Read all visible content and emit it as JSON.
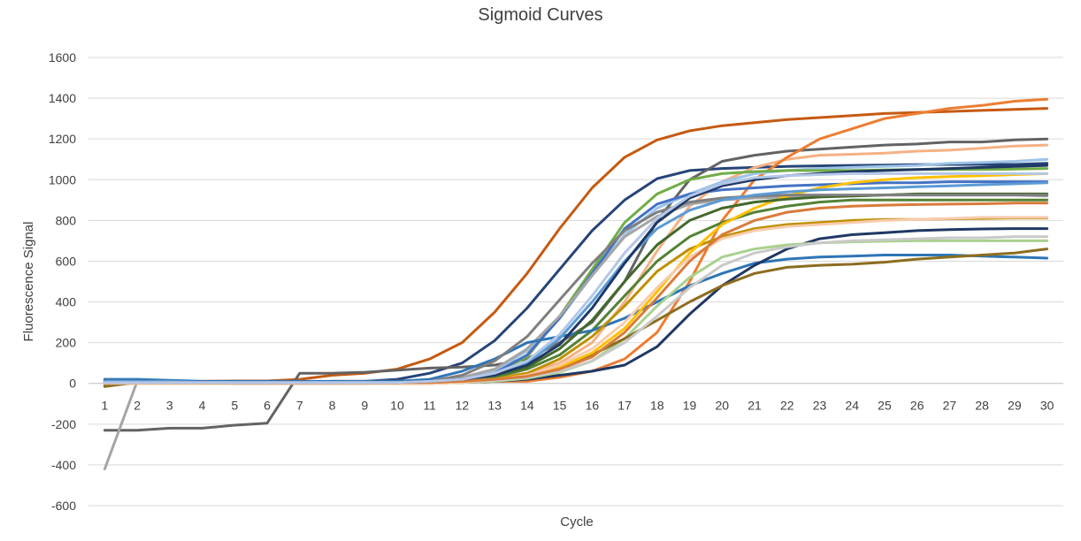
{
  "chart_data": {
    "type": "line",
    "title": "Sigmoid Curves",
    "xlabel": "Cycle",
    "ylabel": "Fluorescence Signal",
    "x": [
      1,
      2,
      3,
      4,
      5,
      6,
      7,
      8,
      9,
      10,
      11,
      12,
      13,
      14,
      15,
      16,
      17,
      18,
      19,
      20,
      21,
      22,
      23,
      24,
      25,
      26,
      27,
      28,
      29,
      30
    ],
    "ylim": [
      -600,
      1600
    ],
    "yticks": [
      -600,
      -400,
      -200,
      0,
      200,
      400,
      600,
      800,
      1000,
      1200,
      1400,
      1600
    ],
    "grid": "horizontal",
    "legend": "none",
    "series": [
      {
        "color": "#c55a11",
        "values": [
          0,
          5,
          8,
          10,
          12,
          12,
          20,
          40,
          50,
          70,
          120,
          200,
          350,
          540,
          760,
          960,
          1110,
          1195,
          1240,
          1265,
          1280,
          1295,
          1305,
          1315,
          1325,
          1330,
          1335,
          1340,
          1345,
          1350
        ]
      },
      {
        "color": "#264478",
        "values": [
          5,
          5,
          5,
          5,
          5,
          5,
          5,
          10,
          10,
          20,
          50,
          100,
          210,
          370,
          560,
          750,
          900,
          1005,
          1045,
          1055,
          1060,
          1065,
          1068,
          1070,
          1072,
          1074,
          1075,
          1075,
          1075,
          1080
        ]
      },
      {
        "color": "#636363",
        "values": [
          -230,
          -230,
          -220,
          -220,
          -205,
          -195,
          50,
          50,
          55,
          65,
          75,
          80,
          90,
          120,
          200,
          300,
          500,
          800,
          1000,
          1090,
          1120,
          1140,
          1150,
          1160,
          1170,
          1175,
          1185,
          1185,
          1195,
          1200
        ]
      },
      {
        "color": "#f4b183",
        "values": [
          10,
          10,
          5,
          5,
          0,
          0,
          10,
          5,
          10,
          10,
          10,
          20,
          30,
          50,
          100,
          200,
          400,
          650,
          870,
          990,
          1060,
          1100,
          1120,
          1125,
          1130,
          1140,
          1145,
          1155,
          1165,
          1170
        ]
      },
      {
        "color": "#ed7d31",
        "values": [
          20,
          15,
          10,
          5,
          5,
          5,
          5,
          5,
          5,
          0,
          0,
          5,
          10,
          10,
          30,
          60,
          120,
          250,
          500,
          800,
          1000,
          1110,
          1200,
          1250,
          1300,
          1325,
          1350,
          1365,
          1385,
          1395
        ]
      },
      {
        "color": "#9dc3e6",
        "values": [
          10,
          10,
          8,
          5,
          5,
          5,
          5,
          5,
          5,
          5,
          10,
          20,
          60,
          160,
          320,
          530,
          730,
          860,
          930,
          990,
          1030,
          1045,
          1055,
          1060,
          1065,
          1070,
          1080,
          1085,
          1090,
          1100
        ]
      },
      {
        "color": "#70ad47",
        "values": [
          10,
          10,
          5,
          5,
          5,
          5,
          5,
          5,
          5,
          5,
          10,
          20,
          50,
          130,
          330,
          560,
          790,
          930,
          1000,
          1030,
          1040,
          1045,
          1045,
          1045,
          1048,
          1050,
          1050,
          1050,
          1052,
          1055
        ]
      },
      {
        "color": "#4472c4",
        "values": [
          15,
          10,
          5,
          5,
          0,
          0,
          0,
          0,
          0,
          5,
          10,
          20,
          50,
          140,
          320,
          540,
          760,
          880,
          930,
          950,
          960,
          970,
          975,
          980,
          985,
          985,
          990,
          990,
          990,
          990
        ]
      },
      {
        "color": "#a5a5a5",
        "values": [
          -420,
          10,
          5,
          5,
          0,
          0,
          0,
          5,
          5,
          5,
          10,
          30,
          70,
          170,
          330,
          530,
          720,
          820,
          880,
          900,
          910,
          915,
          920,
          920,
          925,
          925,
          925,
          925,
          925,
          920
        ]
      },
      {
        "color": "#548235",
        "values": [
          -10,
          5,
          5,
          5,
          5,
          5,
          5,
          5,
          5,
          5,
          10,
          15,
          30,
          70,
          140,
          260,
          430,
          600,
          720,
          790,
          840,
          870,
          890,
          900,
          900,
          900,
          900,
          900,
          900,
          900
        ]
      },
      {
        "color": "#2e75b6",
        "values": [
          20,
          20,
          15,
          10,
          10,
          10,
          10,
          10,
          10,
          10,
          20,
          60,
          120,
          200,
          230,
          260,
          320,
          400,
          480,
          540,
          590,
          610,
          620,
          625,
          630,
          630,
          630,
          625,
          620,
          615
        ]
      },
      {
        "color": "#bf9000",
        "values": [
          0,
          0,
          0,
          0,
          0,
          0,
          0,
          0,
          0,
          0,
          0,
          5,
          20,
          50,
          120,
          230,
          380,
          550,
          660,
          720,
          760,
          780,
          790,
          800,
          805,
          805,
          808,
          810,
          812,
          812
        ]
      },
      {
        "color": "#203864",
        "values": [
          10,
          10,
          5,
          5,
          5,
          5,
          5,
          5,
          5,
          5,
          5,
          5,
          10,
          20,
          40,
          60,
          90,
          180,
          340,
          480,
          580,
          660,
          710,
          730,
          740,
          750,
          755,
          758,
          760,
          760
        ]
      },
      {
        "color": "#a9d18e",
        "values": [
          10,
          10,
          5,
          5,
          5,
          5,
          5,
          5,
          5,
          5,
          5,
          5,
          10,
          25,
          55,
          110,
          220,
          380,
          520,
          620,
          660,
          680,
          690,
          695,
          698,
          700,
          700,
          700,
          700,
          700
        ]
      },
      {
        "color": "#8c6d1f",
        "values": [
          -15,
          5,
          5,
          5,
          5,
          5,
          5,
          5,
          5,
          5,
          5,
          10,
          20,
          40,
          80,
          140,
          220,
          310,
          400,
          480,
          540,
          570,
          580,
          585,
          595,
          610,
          620,
          630,
          640,
          660
        ]
      },
      {
        "color": "#ffc000",
        "values": [
          5,
          5,
          5,
          5,
          5,
          5,
          5,
          5,
          5,
          5,
          5,
          10,
          20,
          40,
          80,
          150,
          270,
          450,
          640,
          780,
          860,
          920,
          960,
          985,
          1000,
          1010,
          1015,
          1020,
          1025,
          1030
        ]
      },
      {
        "color": "#43682b",
        "values": [
          5,
          5,
          5,
          5,
          5,
          5,
          5,
          5,
          5,
          5,
          10,
          20,
          40,
          80,
          170,
          310,
          500,
          680,
          800,
          860,
          890,
          905,
          915,
          920,
          925,
          930,
          930,
          930,
          930,
          930
        ]
      },
      {
        "color": "#7f7f7f",
        "values": [
          5,
          5,
          5,
          5,
          5,
          5,
          5,
          5,
          5,
          5,
          10,
          40,
          110,
          230,
          410,
          590,
          750,
          840,
          890,
          910,
          920,
          925,
          925,
          925,
          925,
          925,
          925,
          925,
          925,
          925
        ]
      },
      {
        "color": "#f8cbad",
        "values": [
          0,
          0,
          0,
          0,
          0,
          0,
          0,
          0,
          0,
          0,
          0,
          5,
          15,
          40,
          90,
          170,
          300,
          470,
          620,
          710,
          750,
          770,
          780,
          790,
          800,
          805,
          810,
          815,
          815,
          815
        ]
      },
      {
        "color": "#c9c9c9",
        "values": [
          5,
          5,
          5,
          5,
          5,
          5,
          5,
          5,
          5,
          5,
          5,
          10,
          15,
          30,
          60,
          110,
          200,
          330,
          470,
          580,
          640,
          670,
          690,
          700,
          705,
          710,
          715,
          715,
          720,
          720
        ]
      },
      {
        "color": "#5b9bd5",
        "values": [
          10,
          10,
          10,
          5,
          5,
          5,
          5,
          5,
          5,
          5,
          10,
          20,
          40,
          100,
          220,
          400,
          600,
          760,
          850,
          900,
          925,
          940,
          950,
          955,
          960,
          965,
          970,
          975,
          980,
          985
        ]
      },
      {
        "color": "#d97b3a",
        "values": [
          5,
          5,
          5,
          5,
          5,
          5,
          5,
          5,
          5,
          5,
          5,
          10,
          20,
          35,
          70,
          130,
          250,
          420,
          600,
          730,
          800,
          840,
          860,
          870,
          875,
          878,
          880,
          882,
          885,
          885
        ]
      },
      {
        "color": "#1f3864",
        "values": [
          5,
          5,
          5,
          5,
          5,
          5,
          5,
          5,
          5,
          5,
          10,
          20,
          40,
          90,
          190,
          370,
          590,
          790,
          910,
          970,
          1000,
          1020,
          1030,
          1040,
          1045,
          1050,
          1055,
          1060,
          1065,
          1070
        ]
      },
      {
        "color": "#b4c7e7",
        "values": [
          5,
          5,
          5,
          5,
          5,
          5,
          5,
          5,
          5,
          5,
          10,
          20,
          50,
          110,
          240,
          430,
          640,
          810,
          920,
          980,
          1010,
          1020,
          1025,
          1030,
          1030,
          1030,
          1030,
          1030,
          1030,
          1030
        ]
      }
    ]
  }
}
